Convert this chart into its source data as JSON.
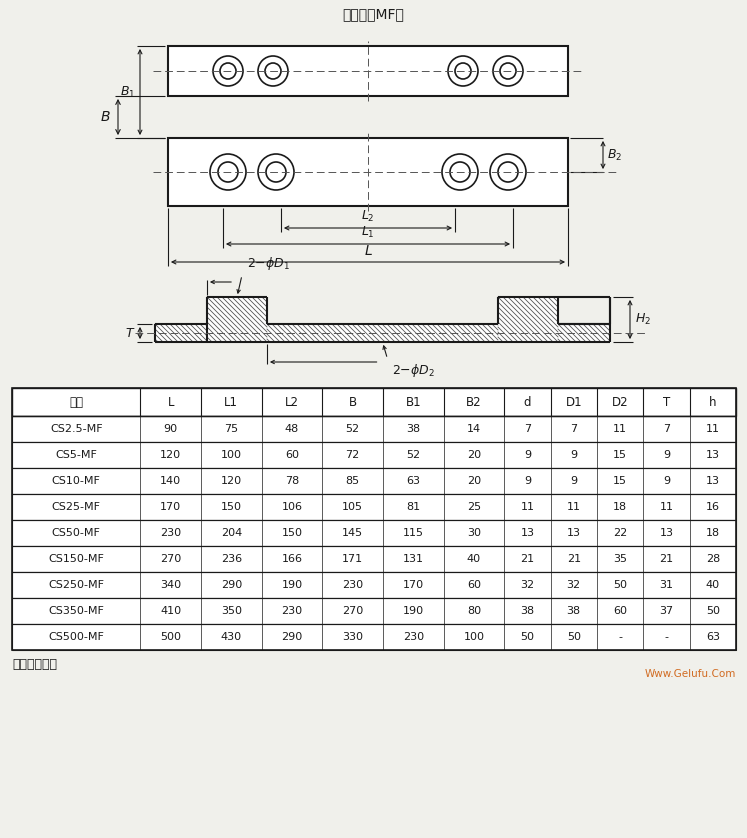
{
  "title": "安装块（MF）",
  "bg_color": "#f0f0eb",
  "line_color": "#1a1a1a",
  "table_headers": [
    "型号",
    "L",
    "L1",
    "L2",
    "B",
    "B1",
    "B2",
    "d",
    "D1",
    "D2",
    "T",
    "h"
  ],
  "table_data": [
    [
      "CS2.5-MF",
      "90",
      "75",
      "48",
      "52",
      "38",
      "14",
      "7",
      "7",
      "11",
      "7",
      "11"
    ],
    [
      "CS5-MF",
      "120",
      "100",
      "60",
      "72",
      "52",
      "20",
      "9",
      "9",
      "15",
      "9",
      "13"
    ],
    [
      "CS10-MF",
      "140",
      "120",
      "78",
      "85",
      "63",
      "20",
      "9",
      "9",
      "15",
      "9",
      "13"
    ],
    [
      "CS25-MF",
      "170",
      "150",
      "106",
      "105",
      "81",
      "25",
      "11",
      "11",
      "18",
      "11",
      "16"
    ],
    [
      "CS50-MF",
      "230",
      "204",
      "150",
      "145",
      "115",
      "30",
      "13",
      "13",
      "22",
      "13",
      "18"
    ],
    [
      "CS150-MF",
      "270",
      "236",
      "166",
      "171",
      "131",
      "40",
      "21",
      "21",
      "35",
      "21",
      "28"
    ],
    [
      "CS250-MF",
      "340",
      "290",
      "190",
      "230",
      "170",
      "60",
      "32",
      "32",
      "50",
      "31",
      "40"
    ],
    [
      "CS350-MF",
      "410",
      "350",
      "230",
      "270",
      "190",
      "80",
      "38",
      "38",
      "60",
      "37",
      "50"
    ],
    [
      "CS500-MF",
      "500",
      "430",
      "290",
      "330",
      "230",
      "100",
      "50",
      "50",
      "-",
      "-",
      "63"
    ]
  ],
  "note": "注：成对使用",
  "watermark": "Www.Gelufu.Com"
}
